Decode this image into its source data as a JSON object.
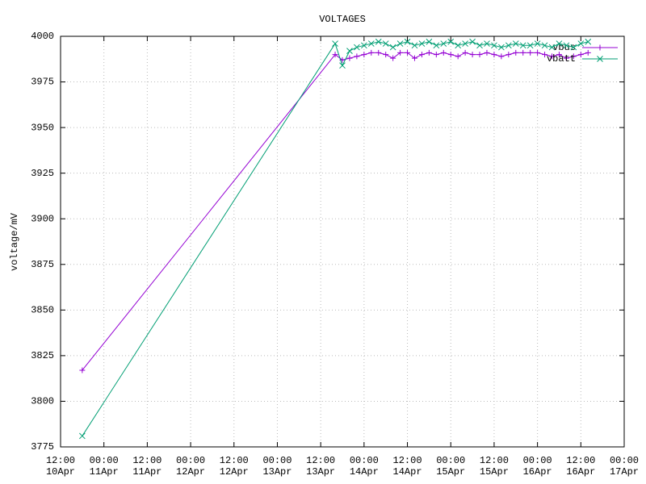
{
  "chart_data": {
    "type": "line",
    "title": "VOLTAGES",
    "y_label": "voltage/mV",
    "x": [
      "10Apr 18:00",
      "13Apr 16:00",
      "13Apr 18:00",
      "13Apr 20:00",
      "13Apr 22:00",
      "14Apr 00:00",
      "14Apr 02:00",
      "14Apr 04:00",
      "14Apr 06:00",
      "14Apr 08:00",
      "14Apr 10:00",
      "14Apr 12:00",
      "14Apr 14:00",
      "14Apr 16:00",
      "14Apr 18:00",
      "14Apr 20:00",
      "14Apr 22:00",
      "15Apr 00:00",
      "15Apr 02:00",
      "15Apr 04:00",
      "15Apr 06:00",
      "15Apr 08:00",
      "15Apr 10:00",
      "15Apr 12:00",
      "15Apr 14:00",
      "15Apr 16:00",
      "15Apr 18:00",
      "15Apr 20:00",
      "15Apr 22:00",
      "16Apr 00:00",
      "16Apr 02:00",
      "16Apr 04:00",
      "16Apr 06:00",
      "16Apr 08:00",
      "16Apr 10:00",
      "16Apr 12:00",
      "16Apr 14:00"
    ],
    "series": [
      {
        "name": "vbus",
        "color": "#9400d3",
        "marker": "plus",
        "values": [
          3817,
          3990,
          3987,
          3988,
          3989,
          3990,
          3991,
          3991,
          3990,
          3988,
          3991,
          3991,
          3988,
          3990,
          3991,
          3990,
          3991,
          3990,
          3989,
          3991,
          3990,
          3990,
          3991,
          3990,
          3989,
          3990,
          3991,
          3991,
          3991,
          3991,
          3990,
          3989,
          3990,
          3988,
          3989,
          3990,
          3991
        ]
      },
      {
        "name": "vbatt",
        "color": "#009e73",
        "marker": "cross",
        "values": [
          3781,
          3996,
          3984,
          3992,
          3994,
          3995,
          3996,
          3997,
          3996,
          3994,
          3996,
          3997,
          3995,
          3996,
          3997,
          3995,
          3996,
          3997,
          3995,
          3996,
          3997,
          3995,
          3996,
          3995,
          3994,
          3995,
          3996,
          3995,
          3995,
          3996,
          3995,
          3994,
          3996,
          3995,
          3994,
          3996,
          3997
        ]
      }
    ],
    "xlim": [
      "10Apr 12:00",
      "17Apr 00:00"
    ],
    "xticks": [
      {
        "value": "10Apr 12:00",
        "label": "12:00\n10Apr"
      },
      {
        "value": "11Apr 00:00",
        "label": "00:00\n11Apr"
      },
      {
        "value": "11Apr 12:00",
        "label": "12:00\n11Apr"
      },
      {
        "value": "12Apr 00:00",
        "label": "00:00\n12Apr"
      },
      {
        "value": "12Apr 12:00",
        "label": "12:00\n12Apr"
      },
      {
        "value": "13Apr 00:00",
        "label": "00:00\n13Apr"
      },
      {
        "value": "13Apr 12:00",
        "label": "12:00\n13Apr"
      },
      {
        "value": "14Apr 00:00",
        "label": "00:00\n14Apr"
      },
      {
        "value": "14Apr 12:00",
        "label": "12:00\n14Apr"
      },
      {
        "value": "15Apr 00:00",
        "label": "00:00\n15Apr"
      },
      {
        "value": "15Apr 12:00",
        "label": "12:00\n15Apr"
      },
      {
        "value": "16Apr 00:00",
        "label": "00:00\n16Apr"
      },
      {
        "value": "16Apr 12:00",
        "label": "12:00\n16Apr"
      },
      {
        "value": "17Apr 00:00",
        "label": "00:00\n17Apr"
      }
    ],
    "ylim": [
      3775,
      4000
    ],
    "yticks": [
      3775,
      3800,
      3825,
      3850,
      3875,
      3900,
      3925,
      3950,
      3975,
      4000
    ],
    "grid": true,
    "legend": "top-right"
  }
}
